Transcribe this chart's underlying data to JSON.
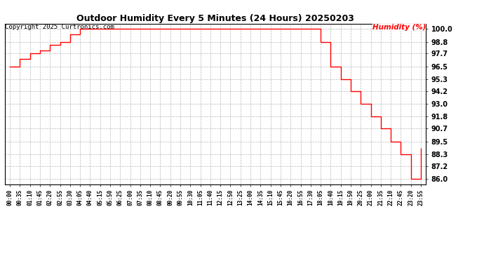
{
  "title": "Outdoor Humidity Every 5 Minutes (24 Hours) 20250203",
  "copyright": "Copyright 2025 Curtronics.com",
  "ylabel": "Humidity (%)",
  "ylabel_color": "#ff0000",
  "line_color": "#ff0000",
  "background_color": "#ffffff",
  "grid_color": "#888888",
  "ylim": [
    85.5,
    100.5
  ],
  "yticks": [
    86.0,
    87.2,
    88.3,
    89.5,
    90.7,
    91.8,
    93.0,
    94.2,
    95.3,
    96.5,
    97.7,
    98.8,
    100.0
  ],
  "times": [
    "00:00",
    "00:35",
    "01:10",
    "01:45",
    "02:20",
    "02:55",
    "03:30",
    "04:05",
    "04:40",
    "05:15",
    "05:50",
    "06:25",
    "07:00",
    "07:35",
    "08:10",
    "08:45",
    "09:20",
    "09:55",
    "10:30",
    "11:05",
    "11:40",
    "12:15",
    "12:50",
    "13:25",
    "14:00",
    "14:35",
    "15:10",
    "15:45",
    "16:20",
    "16:55",
    "17:30",
    "18:05",
    "18:40",
    "19:15",
    "19:50",
    "20:25",
    "21:00",
    "21:35",
    "22:10",
    "22:45",
    "23:20",
    "23:55"
  ],
  "values": [
    96.5,
    97.2,
    97.7,
    98.0,
    98.5,
    98.8,
    99.5,
    100.0,
    100.0,
    100.0,
    100.0,
    100.0,
    100.0,
    100.0,
    100.0,
    100.0,
    100.0,
    100.0,
    100.0,
    100.0,
    100.0,
    100.0,
    100.0,
    100.0,
    100.0,
    100.0,
    100.0,
    100.0,
    100.0,
    100.0,
    100.0,
    98.8,
    96.5,
    95.3,
    94.2,
    93.0,
    91.8,
    90.7,
    89.5,
    88.3,
    86.0,
    88.8
  ],
  "xtick_labels": [
    "00:00",
    "00:35",
    "01:10",
    "01:45",
    "02:20",
    "02:55",
    "03:30",
    "04:05",
    "04:40",
    "05:15",
    "05:50",
    "06:25",
    "07:00",
    "07:35",
    "08:10",
    "08:45",
    "09:20",
    "09:55",
    "10:30",
    "11:05",
    "11:40",
    "12:15",
    "12:50",
    "13:25",
    "14:00",
    "14:35",
    "15:10",
    "15:45",
    "16:20",
    "16:55",
    "17:30",
    "18:05",
    "18:40",
    "19:15",
    "19:50",
    "20:25",
    "21:00",
    "21:35",
    "22:10",
    "22:45",
    "23:20",
    "23:55"
  ]
}
